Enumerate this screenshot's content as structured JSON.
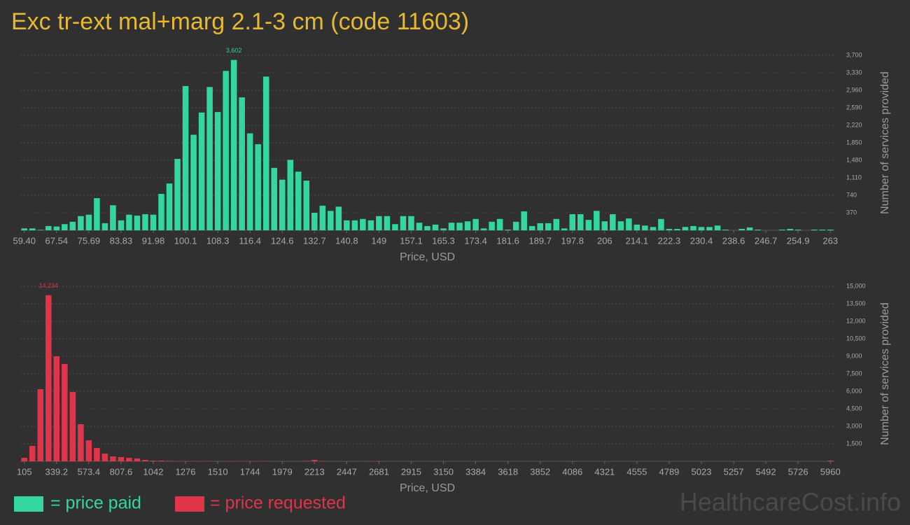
{
  "header": {
    "title": "Exc tr-ext mal+marg 2.1-3 cm (code 11603)"
  },
  "chart_data": [
    {
      "type": "bar",
      "x_label": "Price, USD",
      "y_label": "Number of services provided",
      "categories": [
        "59.40",
        null,
        null,
        null,
        "67.54",
        null,
        null,
        null,
        "75.69",
        null,
        null,
        null,
        "83.83",
        null,
        null,
        null,
        "91.98",
        null,
        null,
        null,
        "100.1",
        null,
        null,
        null,
        "108.3",
        null,
        null,
        null,
        "116.4",
        null,
        null,
        null,
        "124.6",
        null,
        null,
        null,
        "132.7",
        null,
        null,
        null,
        "140.8",
        null,
        null,
        null,
        "149",
        null,
        null,
        null,
        "157.1",
        null,
        null,
        null,
        "165.3",
        null,
        null,
        null,
        "173.4",
        null,
        null,
        null,
        "181.6",
        null,
        null,
        null,
        "189.7",
        null,
        null,
        null,
        "197.8",
        null,
        null,
        null,
        "206",
        null,
        null,
        null,
        "214.1",
        null,
        null,
        null,
        "222.3",
        null,
        null,
        null,
        "230.4",
        null,
        null,
        null,
        "238.6",
        null,
        null,
        null,
        "246.7",
        null,
        null,
        null,
        "254.9",
        null,
        null,
        null,
        "263"
      ],
      "series": [
        {
          "name": "= price paid",
          "color": "#33d69f",
          "values": [
            40,
            40,
            10,
            90,
            80,
            130,
            180,
            300,
            330,
            680,
            150,
            530,
            210,
            330,
            310,
            340,
            330,
            770,
            990,
            1510,
            3050,
            2020,
            2490,
            3030,
            2500,
            3370,
            3602,
            2810,
            2050,
            1820,
            3250,
            1320,
            1070,
            1490,
            1240,
            1050,
            370,
            520,
            410,
            500,
            210,
            210,
            240,
            210,
            300,
            300,
            130,
            300,
            300,
            160,
            90,
            120,
            40,
            160,
            160,
            190,
            240,
            40,
            180,
            240,
            15,
            180,
            400,
            90,
            150,
            150,
            240,
            40,
            340,
            340,
            220,
            410,
            190,
            340,
            190,
            250,
            120,
            100,
            70,
            240,
            30,
            30,
            70,
            90,
            70,
            70,
            100,
            15,
            0,
            30,
            60,
            15,
            0,
            0,
            15,
            30,
            15,
            0,
            15,
            15,
            15
          ]
        }
      ],
      "peak_label": "3,602",
      "ylim": [
        0,
        3700
      ],
      "yticks": [
        370,
        740,
        {
          "value": 1110,
          "label": "1,110"
        },
        {
          "value": 1480,
          "label": "1,480"
        },
        {
          "value": 1850,
          "label": "1,850"
        },
        {
          "value": 2220,
          "label": "2,220"
        },
        {
          "value": 2590,
          "label": "2,590"
        },
        {
          "value": 2960,
          "label": "2,960"
        },
        {
          "value": 3330,
          "label": "3,330"
        },
        {
          "value": 3700,
          "label": "3,700"
        }
      ],
      "grid": true
    },
    {
      "type": "bar",
      "x_label": "Price, USD",
      "y_label": "Number of services provided",
      "categories": [
        "105",
        null,
        null,
        null,
        "339.2",
        null,
        null,
        null,
        "573.4",
        null,
        null,
        null,
        "807.6",
        null,
        null,
        null,
        "1042",
        null,
        null,
        null,
        "1276",
        null,
        null,
        null,
        "1510",
        null,
        null,
        null,
        "1744",
        null,
        null,
        null,
        "1979",
        null,
        null,
        null,
        "2213",
        null,
        null,
        null,
        "2447",
        null,
        null,
        null,
        "2681",
        null,
        null,
        null,
        "2915",
        null,
        null,
        null,
        "3150",
        null,
        null,
        null,
        "3384",
        null,
        null,
        null,
        "3618",
        null,
        null,
        null,
        "3852",
        null,
        null,
        null,
        "4086",
        null,
        null,
        null,
        "4321",
        null,
        null,
        null,
        "4555",
        null,
        null,
        null,
        "4789",
        null,
        null,
        null,
        "5023",
        null,
        null,
        null,
        "5257",
        null,
        null,
        null,
        "5492",
        null,
        null,
        null,
        "5726",
        null,
        null,
        null,
        "5960"
      ],
      "series": [
        {
          "name": "= price requested",
          "color": "#e0344a",
          "values": [
            300,
            1320,
            6180,
            14234,
            9000,
            8340,
            5940,
            3180,
            1800,
            1140,
            660,
            420,
            360,
            300,
            240,
            120,
            60,
            60,
            40,
            20,
            30,
            20,
            20,
            20,
            10,
            20,
            10,
            20,
            20,
            20,
            20,
            10,
            10,
            10,
            10,
            40,
            120,
            30,
            10,
            10,
            10,
            10,
            0,
            20,
            20,
            0,
            0,
            0,
            0,
            0,
            0,
            10,
            0,
            0,
            0,
            0,
            0,
            0,
            0,
            0,
            0,
            0,
            0,
            0,
            0,
            0,
            0,
            0,
            20,
            0,
            0,
            0,
            0,
            0,
            0,
            0,
            0,
            0,
            0,
            0,
            0,
            0,
            0,
            0,
            0,
            0,
            0,
            0,
            0,
            0,
            0,
            0,
            0,
            0,
            0,
            0,
            0,
            0,
            0,
            0,
            60
          ]
        }
      ],
      "peak_label": "14,234",
      "ylim": [
        0,
        15000
      ],
      "yticks": [
        {
          "value": 1500,
          "label": "1,500"
        },
        {
          "value": 3000,
          "label": "3,000"
        },
        {
          "value": 4500,
          "label": "4,500"
        },
        {
          "value": 6000,
          "label": "6,000"
        },
        {
          "value": 7500,
          "label": "7,500"
        },
        {
          "value": 9000,
          "label": "9,000"
        },
        {
          "value": 10500,
          "label": "10,500"
        },
        {
          "value": 12000,
          "label": "12,000"
        },
        {
          "value": 13500,
          "label": "13,500"
        },
        {
          "value": 15000,
          "label": "15,000"
        }
      ],
      "grid": true
    }
  ],
  "footer": {
    "watermark": "HealthcareCost.info"
  }
}
